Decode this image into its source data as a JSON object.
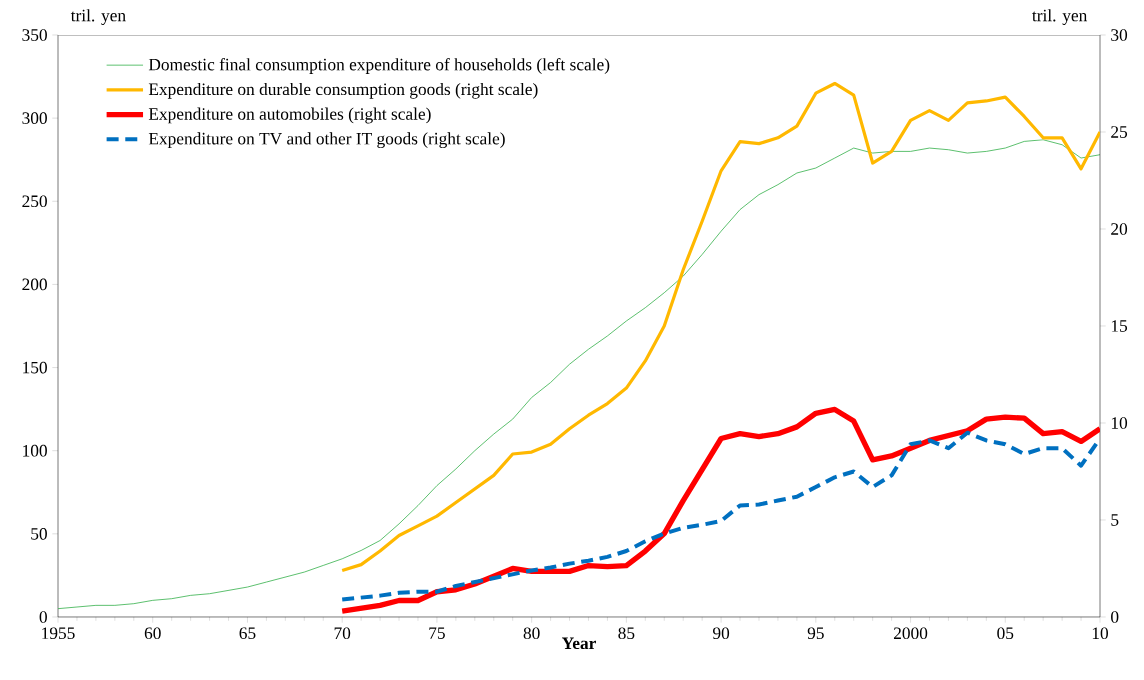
{
  "chart_data": {
    "type": "line",
    "xlabel": "Year",
    "ylabel": "tril. yen",
    "y2label": "tril. yen",
    "xlim": [
      1955,
      2010
    ],
    "xticks": [
      1955,
      {
        "value": 1960,
        "label": "60"
      },
      {
        "value": 1965,
        "label": "65"
      },
      {
        "value": 1970,
        "label": "70"
      },
      {
        "value": 1975,
        "label": "75"
      },
      {
        "value": 1980,
        "label": "80"
      },
      {
        "value": 1985,
        "label": "85"
      },
      {
        "value": 1990,
        "label": "90"
      },
      {
        "value": 1995,
        "label": "95"
      },
      2000,
      {
        "value": 2005,
        "label": "05"
      },
      {
        "value": 2010,
        "label": "10"
      }
    ],
    "ylim": [
      0,
      350
    ],
    "yticks": [
      0,
      50,
      100,
      150,
      200,
      250,
      300,
      350
    ],
    "y2lim": [
      0,
      30
    ],
    "y2ticks": [
      0,
      5,
      10,
      15,
      20,
      25,
      30
    ],
    "legend": "top left",
    "grid": false,
    "series": [
      {
        "name": "Domestic final consumption expenditure of households (left scale)",
        "color": "#33b04a",
        "line_style": "solid",
        "axis": "y",
        "x": [
          1955,
          1956,
          1957,
          1958,
          1959,
          1960,
          1961,
          1962,
          1963,
          1964,
          1965,
          1966,
          1967,
          1968,
          1969,
          1970,
          1971,
          1972,
          1973,
          1974,
          1975,
          1976,
          1977,
          1978,
          1979,
          1980,
          1981,
          1982,
          1983,
          1984,
          1985,
          1986,
          1987,
          1988,
          1989,
          1990,
          1991,
          1992,
          1993,
          1994,
          1995,
          1996,
          1997,
          1998,
          1999,
          2000,
          2001,
          2002,
          2003,
          2004,
          2005,
          2006,
          2007,
          2008,
          2009,
          2010
        ],
        "values": [
          5,
          6,
          7,
          7,
          8,
          10,
          11,
          13,
          14,
          16,
          18,
          21,
          24,
          27,
          31,
          35,
          40,
          46,
          56,
          67,
          79,
          89,
          100,
          110,
          119,
          132,
          141,
          152,
          161,
          169,
          178,
          186,
          195,
          205,
          218,
          232,
          245,
          254,
          260,
          267,
          270,
          276,
          282,
          279,
          280,
          280,
          282,
          281,
          279,
          280,
          282,
          286,
          287,
          284,
          276,
          278
        ]
      },
      {
        "name": "Expenditure on durable consumption goods (right scale)",
        "color": "#ffb800",
        "line_style": "solid",
        "axis": "y2",
        "x": [
          1970,
          1971,
          1972,
          1973,
          1974,
          1975,
          1976,
          1977,
          1978,
          1979,
          1980,
          1981,
          1982,
          1983,
          1984,
          1985,
          1986,
          1987,
          1988,
          1989,
          1990,
          1991,
          1992,
          1993,
          1994,
          1995,
          1996,
          1997,
          1998,
          1999,
          2000,
          2001,
          2002,
          2003,
          2004,
          2005,
          2006,
          2007,
          2008,
          2009,
          2010
        ],
        "values": [
          2.4,
          2.7,
          3.4,
          4.2,
          4.7,
          5.2,
          5.9,
          6.6,
          7.3,
          8.4,
          8.5,
          8.9,
          9.7,
          10.4,
          11.0,
          11.8,
          13.2,
          15.0,
          17.9,
          20.4,
          23.0,
          24.5,
          24.4,
          24.7,
          25.3,
          27.0,
          27.5,
          26.9,
          23.4,
          24.0,
          25.6,
          26.1,
          25.6,
          26.5,
          26.6,
          26.8,
          25.8,
          24.7,
          24.7,
          23.1,
          25.0
        ]
      },
      {
        "name": "Expenditure on automobiles (right scale)",
        "color": "#ff0000",
        "line_style": "solid",
        "axis": "y2",
        "x": [
          1970,
          1971,
          1972,
          1973,
          1974,
          1975,
          1976,
          1977,
          1978,
          1979,
          1980,
          1981,
          1982,
          1983,
          1984,
          1985,
          1986,
          1987,
          1988,
          1989,
          1990,
          1991,
          1992,
          1993,
          1994,
          1995,
          1996,
          1997,
          1998,
          1999,
          2000,
          2001,
          2002,
          2003,
          2004,
          2005,
          2006,
          2007,
          2008,
          2009,
          2010
        ],
        "values": [
          0.3,
          0.45,
          0.6,
          0.85,
          0.85,
          1.3,
          1.4,
          1.7,
          2.1,
          2.5,
          2.35,
          2.35,
          2.35,
          2.65,
          2.6,
          2.65,
          3.4,
          4.3,
          6.0,
          7.6,
          9.2,
          9.45,
          9.3,
          9.45,
          9.8,
          10.5,
          10.7,
          10.1,
          8.1,
          8.3,
          8.7,
          9.1,
          9.35,
          9.6,
          10.2,
          10.3,
          10.25,
          9.45,
          9.55,
          9.05,
          9.7
        ]
      },
      {
        "name": "Expenditure on TV and other IT goods (right scale)",
        "color": "#0070c0",
        "line_style": "dashed",
        "axis": "y2",
        "x": [
          1970,
          1971,
          1972,
          1973,
          1974,
          1975,
          1976,
          1977,
          1978,
          1979,
          1980,
          1981,
          1982,
          1983,
          1984,
          1985,
          1986,
          1987,
          1988,
          1989,
          1990,
          1991,
          1992,
          1993,
          1994,
          1995,
          1996,
          1997,
          1998,
          1999,
          2000,
          2001,
          2002,
          2003,
          2004,
          2005,
          2006,
          2007,
          2008,
          2009,
          2010
        ],
        "values": [
          0.9,
          1.0,
          1.1,
          1.25,
          1.3,
          1.3,
          1.6,
          1.8,
          2.0,
          2.2,
          2.4,
          2.55,
          2.75,
          2.9,
          3.1,
          3.4,
          3.9,
          4.3,
          4.6,
          4.75,
          4.95,
          5.75,
          5.8,
          6.0,
          6.2,
          6.7,
          7.2,
          7.5,
          6.7,
          7.3,
          8.9,
          9.1,
          8.7,
          9.5,
          9.1,
          8.9,
          8.4,
          8.7,
          8.7,
          7.8,
          9.2
        ]
      }
    ]
  }
}
